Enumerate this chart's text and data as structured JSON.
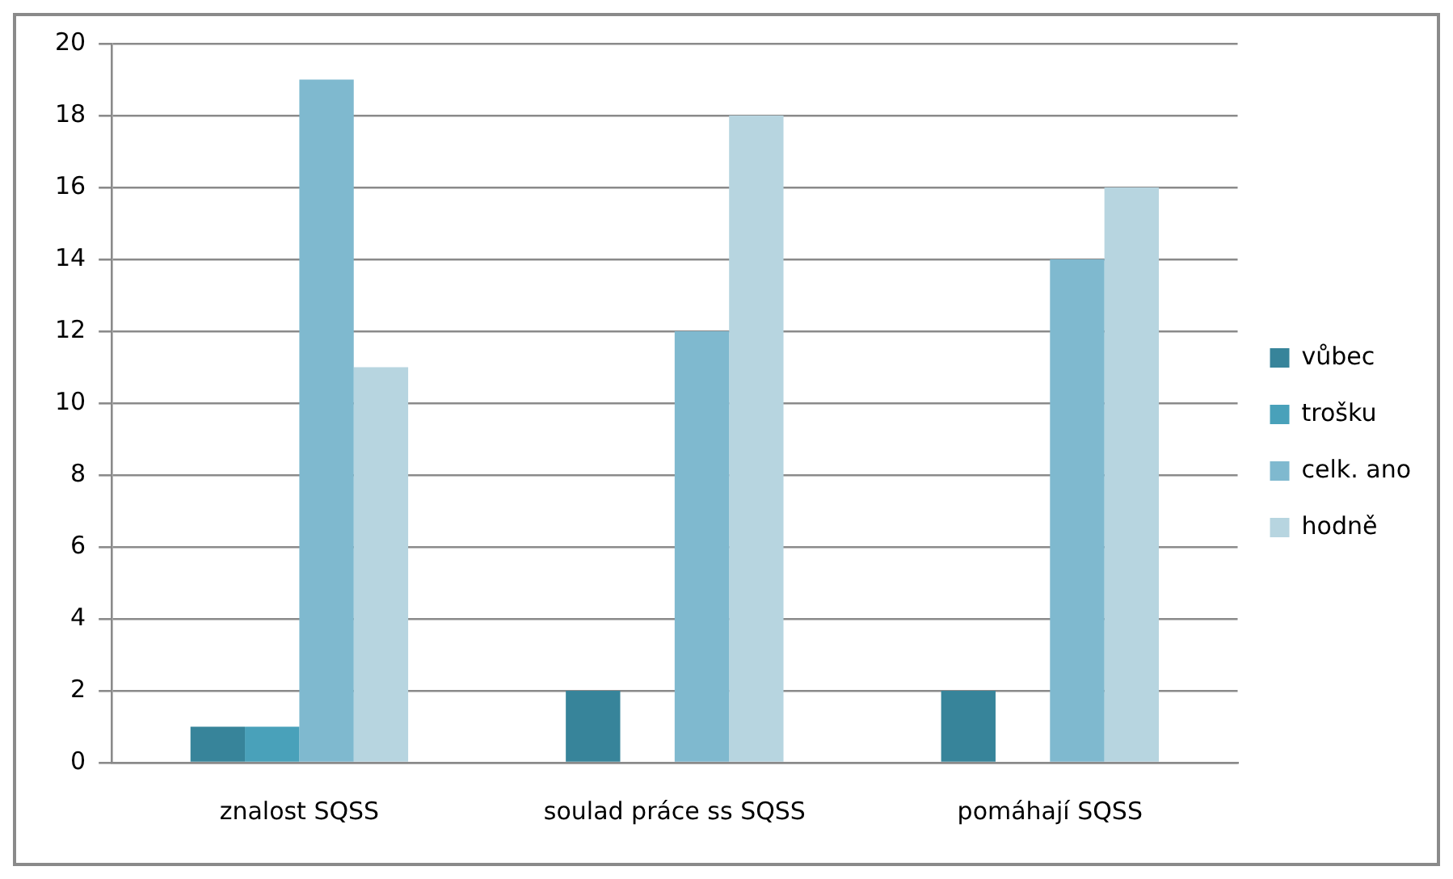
{
  "chart_data": {
    "type": "bar",
    "categories": [
      "znalost SQSS",
      "soulad práce ss SQSS",
      "pomáhají SQSS"
    ],
    "series": [
      {
        "name": "vůbec",
        "color": "#37849a",
        "values": [
          1,
          2,
          2
        ]
      },
      {
        "name": "trošku",
        "color": "#49a1ba",
        "values": [
          1,
          0,
          0
        ]
      },
      {
        "name": "celk. ano",
        "color": "#7fb9cf",
        "values": [
          19,
          12,
          14
        ]
      },
      {
        "name": "hodně",
        "color": "#b7d5e0",
        "values": [
          11,
          18,
          16
        ]
      }
    ],
    "ylim": [
      0,
      20
    ],
    "yticks": [
      0,
      2,
      4,
      6,
      8,
      10,
      12,
      14,
      16,
      18,
      20
    ],
    "grid": "y",
    "legend": "right"
  }
}
